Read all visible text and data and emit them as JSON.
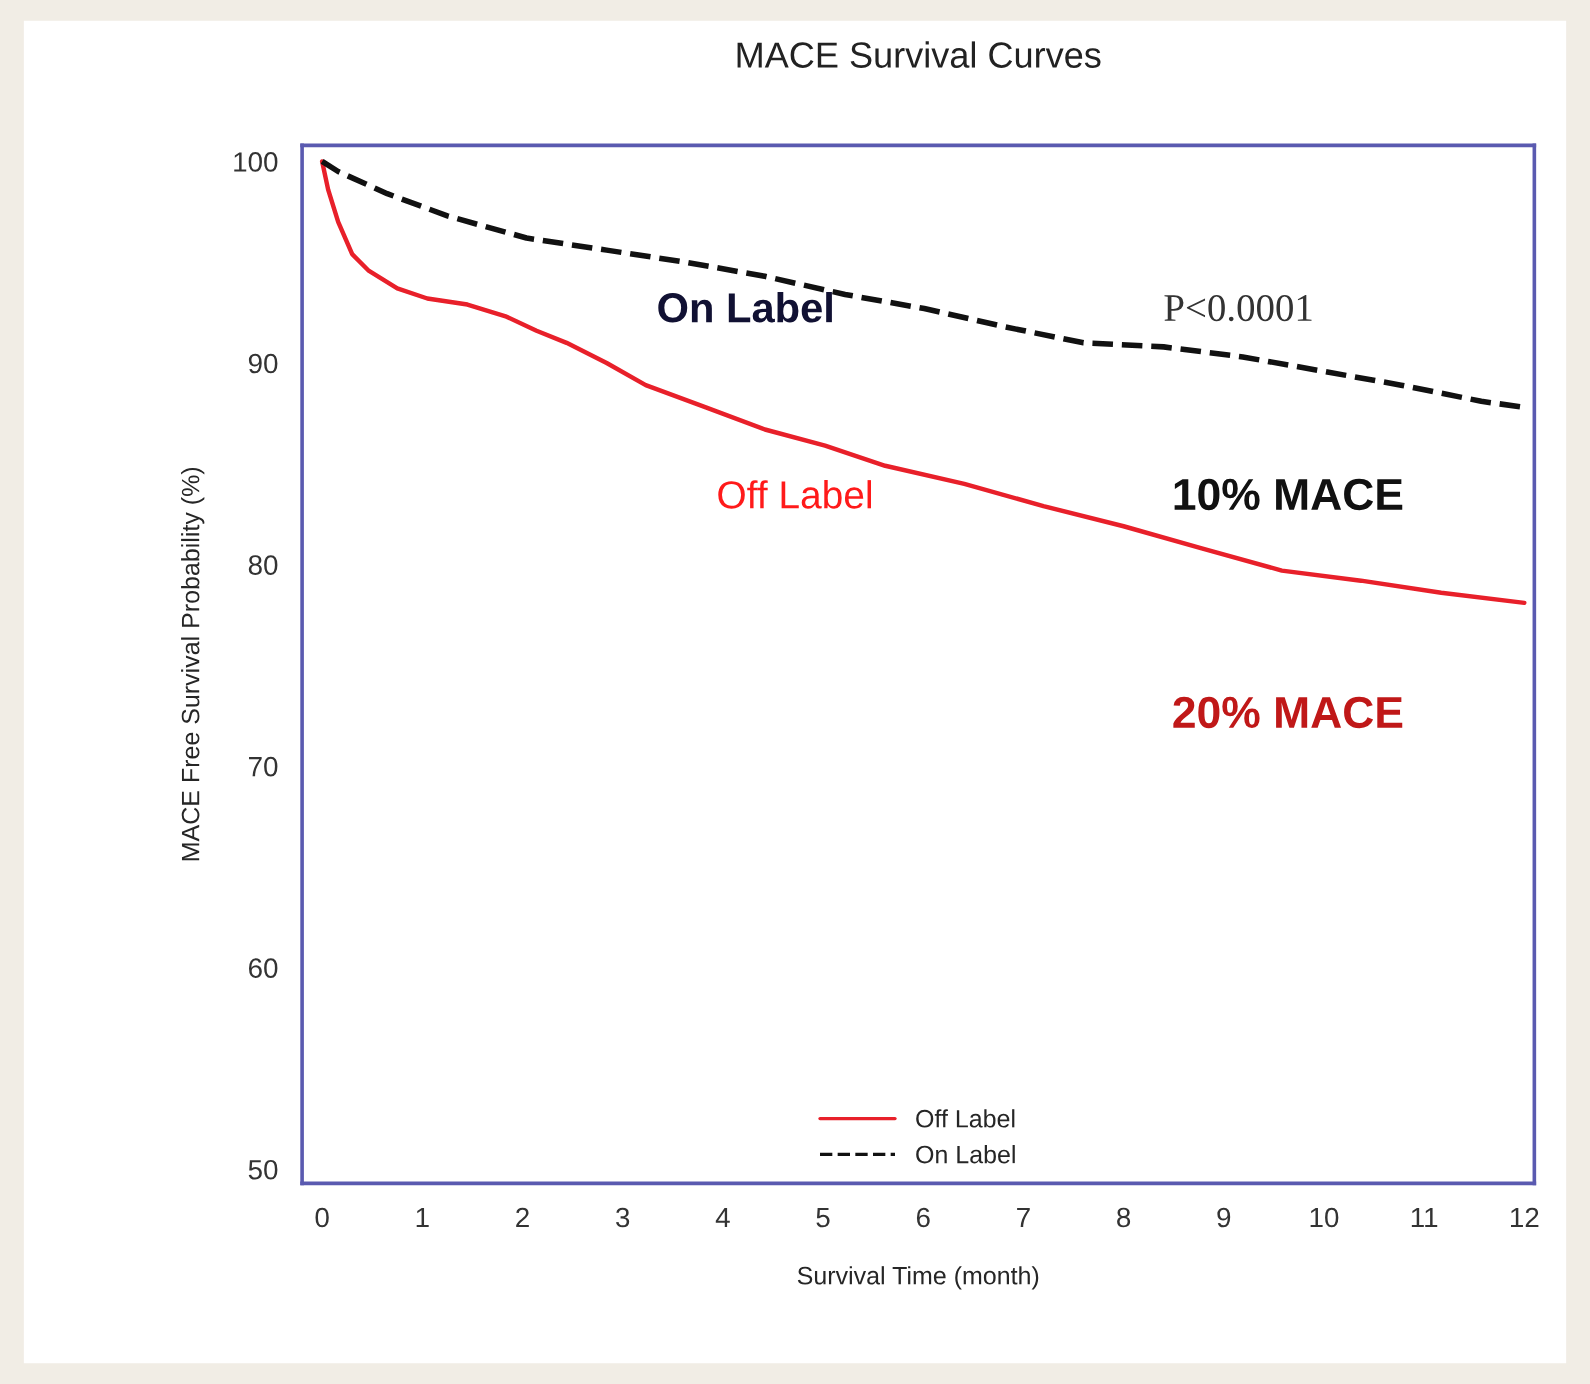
{
  "chart_data": {
    "type": "line",
    "title": "MACE Survival Curves",
    "xlabel": "Survival Time (month)",
    "ylabel": "MACE Free Survival Probability (%)",
    "series": [
      {
        "name": "Off Label",
        "color": "#e8202a",
        "line_style": "solid",
        "x": [
          0,
          0.06,
          0.16,
          0.3,
          0.46,
          0.75,
          1.05,
          1.45,
          1.84,
          2.14,
          2.44,
          2.84,
          3.23,
          3.83,
          4.42,
          5.02,
          5.62,
          6.41,
          7.2,
          8.0,
          8.78,
          9.58,
          10.37,
          11.17,
          12
        ],
        "values": [
          100,
          98.6,
          97,
          95.4,
          94.6,
          93.7,
          93.2,
          92.9,
          92.3,
          91.6,
          91,
          90,
          88.9,
          87.8,
          86.7,
          85.9,
          84.9,
          84,
          82.9,
          81.9,
          80.8,
          79.7,
          79.2,
          78.6,
          78.1
        ]
      },
      {
        "name": "On Label",
        "color": "#111111",
        "line_style": "dashed",
        "x": [
          0,
          0.16,
          0.65,
          1.25,
          2.04,
          2.84,
          3.63,
          4.42,
          5.22,
          6.01,
          6.81,
          7.6,
          8.4,
          9.19,
          9.98,
          10.77,
          11.57,
          12
        ],
        "values": [
          100,
          99.5,
          98.4,
          97.3,
          96.2,
          95.6,
          95,
          94.3,
          93.4,
          92.7,
          91.8,
          91,
          90.8,
          90.3,
          89.6,
          88.9,
          88.1,
          87.8
        ]
      }
    ],
    "annotations": [
      "On Label",
      "P<0.0001",
      "Off Label",
      "10% MACE",
      "20% MACE"
    ],
    "xlim": [
      -0.2,
      12.1
    ],
    "ylim": [
      49.3,
      100.8
    ],
    "xticks": [
      0,
      1,
      2,
      3,
      4,
      5,
      6,
      7,
      8,
      9,
      10,
      11,
      12
    ],
    "yticks": [
      50,
      60,
      70,
      80,
      90,
      100
    ],
    "grid": false,
    "legend": "bottom",
    "marker": "none"
  }
}
